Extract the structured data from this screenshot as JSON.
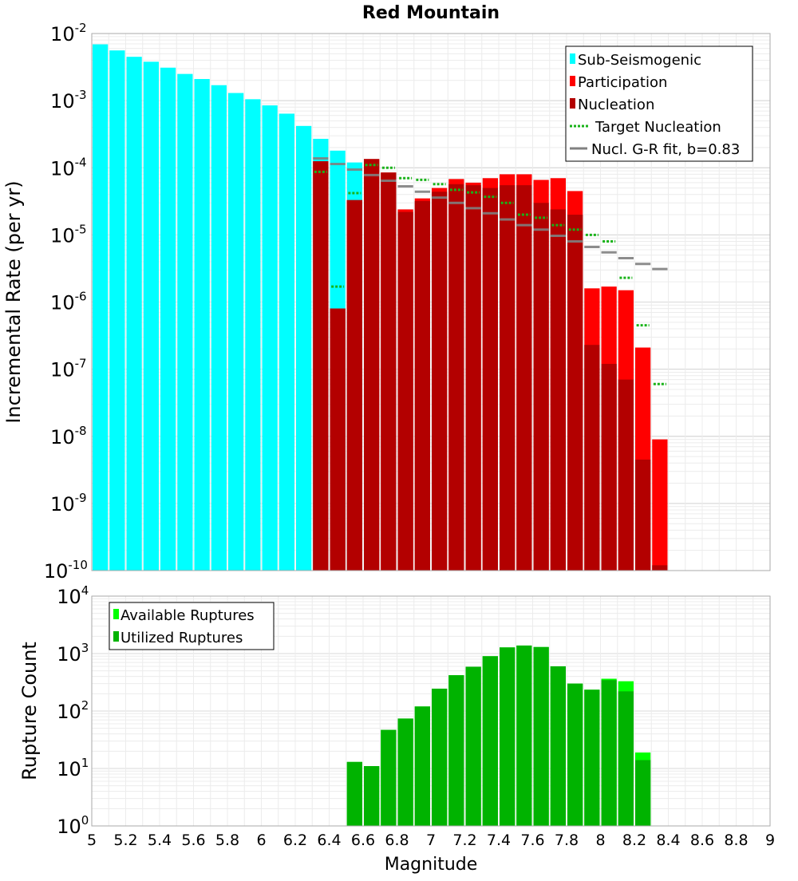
{
  "chart_data": [
    {
      "type": "bar",
      "title": "Red Mountain",
      "ylabel": "Incremental Rate (per yr)",
      "xlabel": "",
      "yscale": "log",
      "ylim_exponent": [
        -10,
        -2
      ],
      "xlim": [
        5,
        9
      ],
      "bin_width": 0.1,
      "grid": true,
      "legend_position": "top-right",
      "x_tick_labels": [
        "5",
        "5.2",
        "5.4",
        "5.6",
        "5.8",
        "6",
        "6.2",
        "6.4",
        "6.6",
        "6.8",
        "7",
        "7.2",
        "7.4",
        "7.6",
        "7.8",
        "8",
        "8.2",
        "8.4",
        "8.6",
        "8.8",
        "9"
      ],
      "y_tick_exponents": [
        -2,
        -3,
        -4,
        -5,
        -6,
        -7,
        -8,
        -9,
        -10
      ],
      "colors": {
        "sub_seismogenic": "#00ffff",
        "participation": "#ff0000",
        "nucleation": "#b30000",
        "target_nucleation": "#19b319",
        "gr_fit": "#808080"
      },
      "legend": [
        "Sub-Seismogenic",
        "Participation",
        "Nucleation",
        "Target Nucleation",
        "Nucl. G-R fit, b=0.83"
      ],
      "series": [
        {
          "name": "Sub-Seismogenic",
          "x": [
            5.05,
            5.15,
            5.25,
            5.35,
            5.45,
            5.55,
            5.65,
            5.75,
            5.85,
            5.95,
            6.05,
            6.15,
            6.25,
            6.35,
            6.45,
            6.55
          ],
          "values": [
            0.0069,
            0.0056,
            0.0045,
            0.0038,
            0.0031,
            0.0025,
            0.0021,
            0.0017,
            0.0013,
            0.00105,
            0.00085,
            0.00064,
            0.00042,
            0.00027,
            0.00018,
            0.00012
          ]
        },
        {
          "name": "Participation",
          "x": [
            6.35,
            6.45,
            6.55,
            6.65,
            6.75,
            6.85,
            6.95,
            7.05,
            7.15,
            7.25,
            7.35,
            7.45,
            7.55,
            7.65,
            7.75,
            7.85,
            7.95,
            8.05,
            8.15,
            8.25,
            8.35
          ],
          "values": [
            0.000125,
            8e-07,
            3.3e-05,
            0.000135,
            8.5e-05,
            2.4e-05,
            3.5e-05,
            5e-05,
            6.8e-05,
            6e-05,
            7e-05,
            8e-05,
            8e-05,
            6.6e-05,
            7e-05,
            4.5e-05,
            1.6e-06,
            1.7e-06,
            1.5e-06,
            2.1e-07,
            9e-09
          ]
        },
        {
          "name": "Nucleation",
          "x": [
            6.35,
            6.45,
            6.55,
            6.65,
            6.75,
            6.85,
            6.95,
            7.05,
            7.15,
            7.25,
            7.35,
            7.45,
            7.55,
            7.65,
            7.75,
            7.85,
            7.95,
            8.05,
            8.15,
            8.25,
            8.35
          ],
          "values": [
            0.000125,
            8e-07,
            3.3e-05,
            0.000135,
            8.5e-05,
            2.2e-05,
            3.2e-05,
            4.4e-05,
            5.7e-05,
            5.5e-05,
            5e-05,
            5.5e-05,
            5.5e-05,
            3e-05,
            2.4e-05,
            2e-05,
            2.3e-07,
            1.2e-07,
            7e-08,
            4.5e-09,
            1.2e-10
          ]
        },
        {
          "name": "Target Nucleation",
          "x": [
            6.35,
            6.45,
            6.55,
            6.65,
            6.75,
            6.85,
            6.95,
            7.05,
            7.15,
            7.25,
            7.35,
            7.45,
            7.55,
            7.65,
            7.75,
            7.85,
            7.95,
            8.05,
            8.15,
            8.25,
            8.35
          ],
          "values": [
            8.7e-05,
            1.7e-06,
            4.2e-05,
            0.00011,
            0.0001,
            7e-05,
            6.6e-05,
            5.7e-05,
            4.7e-05,
            4.3e-05,
            3.7e-05,
            3e-05,
            2e-05,
            1.8e-05,
            1.4e-05,
            1.2e-05,
            1e-05,
            8e-06,
            2.3e-06,
            4.5e-07,
            6e-08
          ]
        },
        {
          "name": "Nucl. G-R fit, b=0.83",
          "x": [
            6.35,
            6.45,
            6.55,
            6.65,
            6.75,
            6.85,
            6.95,
            7.05,
            7.15,
            7.25,
            7.35,
            7.45,
            7.55,
            7.65,
            7.75,
            7.85,
            7.95,
            8.05,
            8.15,
            8.25,
            8.35
          ],
          "values": [
            0.000138,
            0.000114,
            9.4e-05,
            7.8e-05,
            6.4e-05,
            5.3e-05,
            4.4e-05,
            3.6e-05,
            3e-05,
            2.5e-05,
            2.1e-05,
            1.7e-05,
            1.4e-05,
            1.2e-05,
            9.7e-06,
            8e-06,
            6.6e-06,
            5.5e-06,
            4.5e-06,
            3.7e-06,
            3.1e-06
          ]
        }
      ]
    },
    {
      "type": "bar",
      "title": "",
      "ylabel": "Rupture Count",
      "xlabel": "Magnitude",
      "yscale": "log",
      "ylim_exponent": [
        0,
        4
      ],
      "xlim": [
        5,
        9
      ],
      "bin_width": 0.1,
      "grid": true,
      "legend_position": "top-left",
      "y_tick_exponents": [
        4,
        3,
        2,
        1,
        0
      ],
      "colors": {
        "available": "#00ff00",
        "utilized": "#00b300"
      },
      "legend": [
        "Available Ruptures",
        "Utilized Ruptures"
      ],
      "series": [
        {
          "name": "Available Ruptures",
          "x": [
            6.55,
            6.65,
            6.75,
            6.85,
            6.95,
            7.05,
            7.15,
            7.25,
            7.35,
            7.45,
            7.55,
            7.65,
            7.75,
            7.85,
            7.95,
            8.05,
            8.15,
            8.25
          ],
          "values": [
            13,
            11,
            47,
            74,
            120,
            245,
            420,
            590,
            900,
            1280,
            1380,
            1300,
            600,
            300,
            235,
            365,
            330,
            19
          ]
        },
        {
          "name": "Utilized Ruptures",
          "x": [
            6.55,
            6.65,
            6.75,
            6.85,
            6.95,
            7.05,
            7.15,
            7.25,
            7.35,
            7.45,
            7.55,
            7.65,
            7.75,
            7.85,
            7.95,
            8.05,
            8.15,
            8.25
          ],
          "values": [
            13,
            11,
            47,
            74,
            120,
            245,
            420,
            590,
            900,
            1280,
            1380,
            1300,
            600,
            300,
            235,
            345,
            220,
            14
          ]
        }
      ]
    }
  ]
}
